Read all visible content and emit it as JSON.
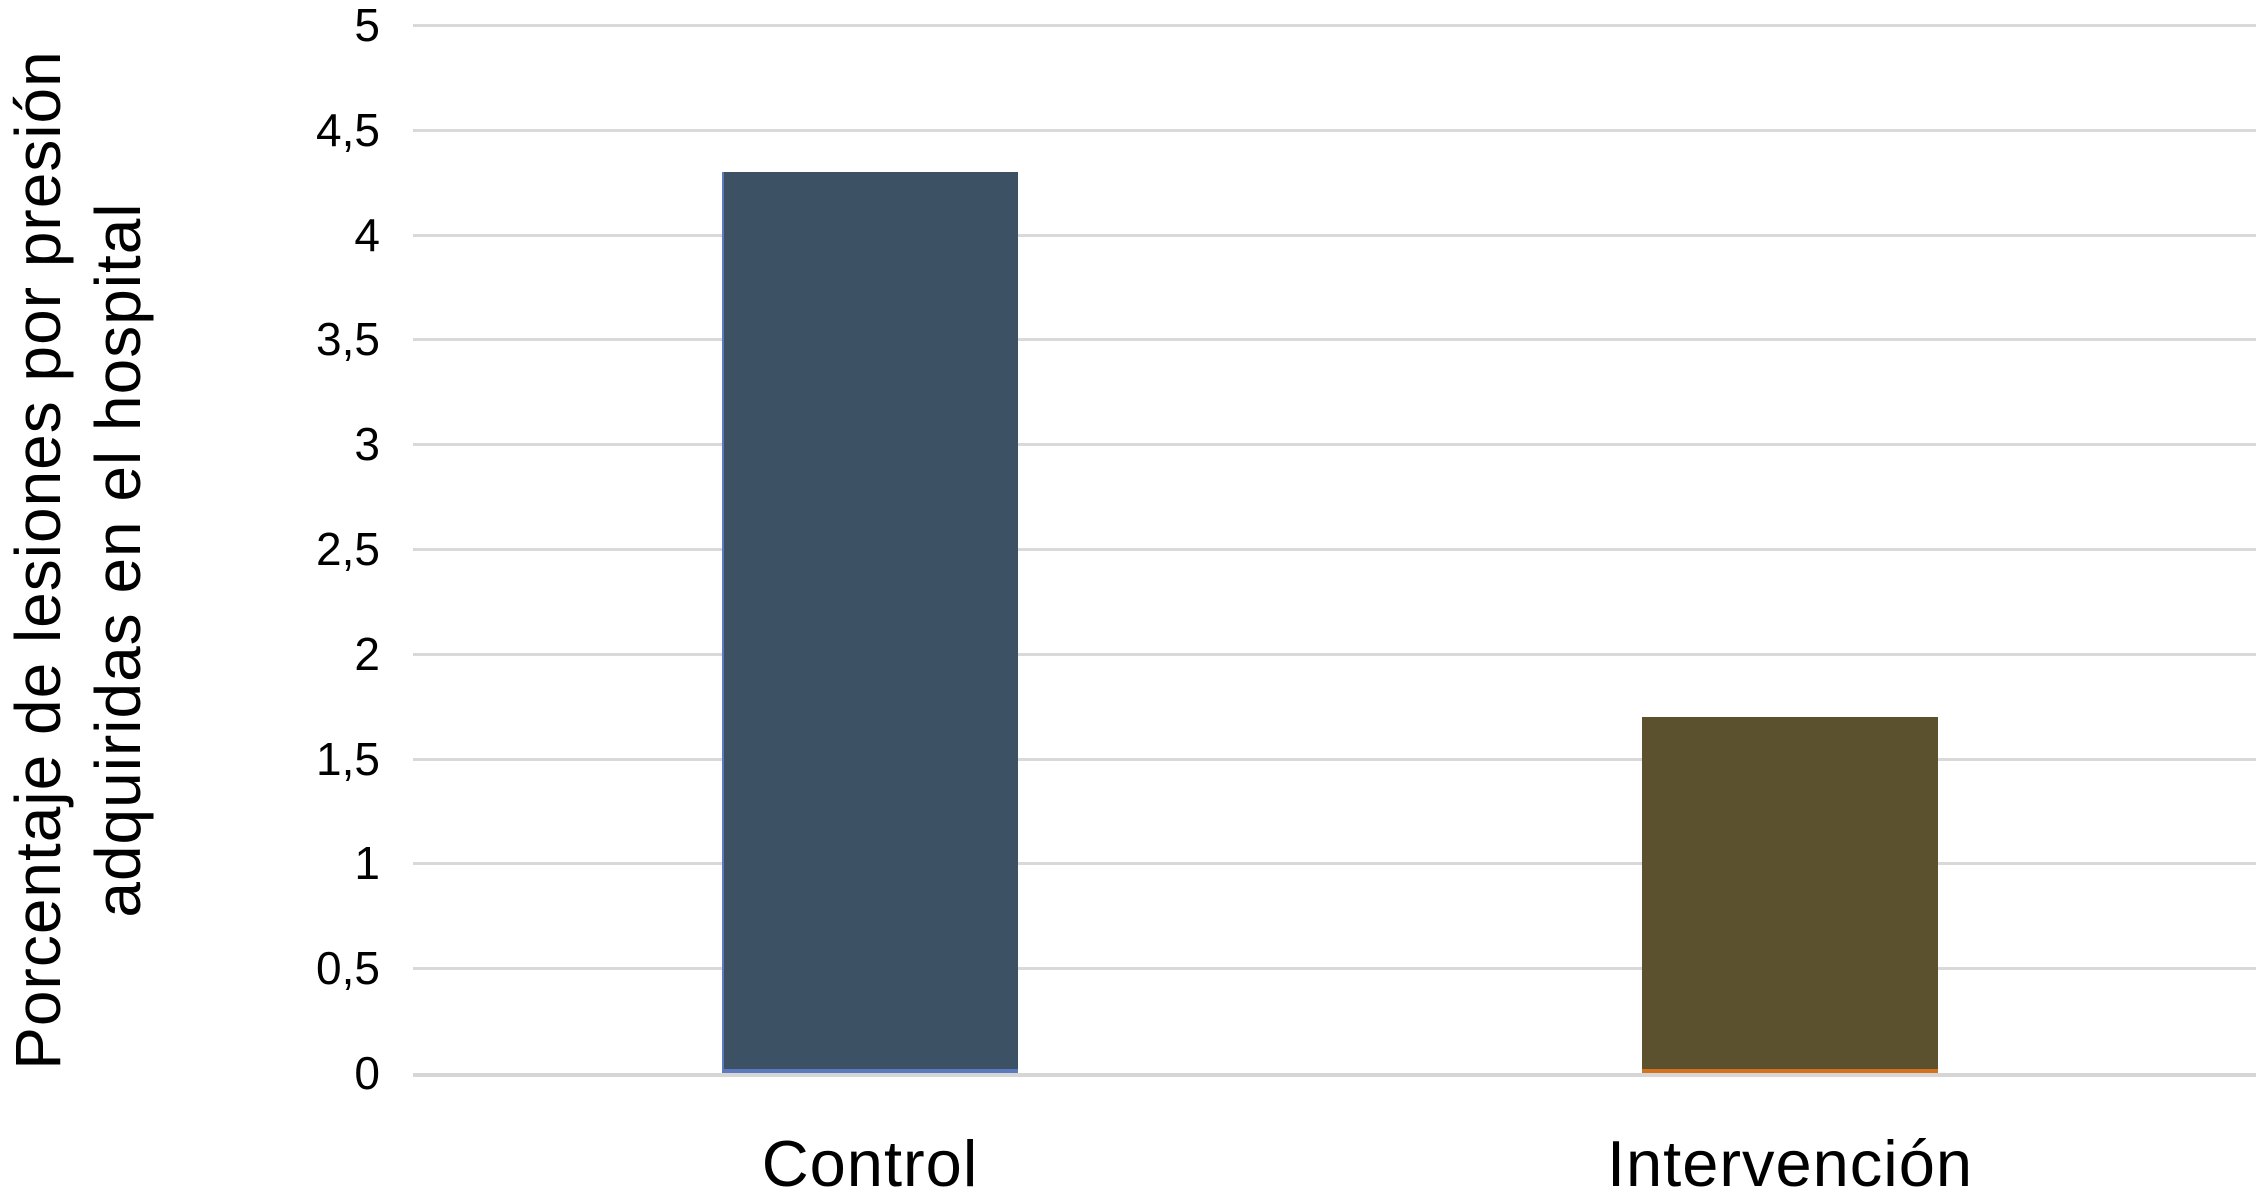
{
  "chart_data": {
    "type": "bar",
    "title": "",
    "ylabel_lines": [
      "Porcentaje de lesiones por presión",
      "adquiridas en el hospital"
    ],
    "xlabel": "",
    "categories": [
      "Control",
      "Intervención"
    ],
    "values": [
      4.3,
      1.7
    ],
    "ylim": [
      0,
      5
    ],
    "ytick_step": 0.5,
    "yticks": [
      {
        "value": 0,
        "label": "0"
      },
      {
        "value": 0.5,
        "label": "0,5"
      },
      {
        "value": 1,
        "label": "1"
      },
      {
        "value": 1.5,
        "label": "1,5"
      },
      {
        "value": 2,
        "label": "2"
      },
      {
        "value": 2.5,
        "label": "2,5"
      },
      {
        "value": 3,
        "label": "3"
      },
      {
        "value": 3.5,
        "label": "3,5"
      },
      {
        "value": 4,
        "label": "4"
      },
      {
        "value": 4.5,
        "label": "4,5"
      },
      {
        "value": 5,
        "label": "5"
      }
    ],
    "grid": "horizontal-only",
    "legend": "none",
    "bars": [
      {
        "category": "Control",
        "value": 4.3,
        "fill": "#3D5164",
        "border_color": "#5C7ABD",
        "border": {
          "left": 2,
          "bottom": 4
        }
      },
      {
        "category": "Intervención",
        "value": 1.7,
        "fill": "#5C512E",
        "border_color": "#D3731F",
        "border": {
          "left": 0,
          "bottom": 4
        }
      }
    ],
    "colors": {
      "gridline": "#D9D9D9",
      "axis_line": "#D6D6D6",
      "text": "#000000",
      "background": "#FFFFFF"
    }
  }
}
